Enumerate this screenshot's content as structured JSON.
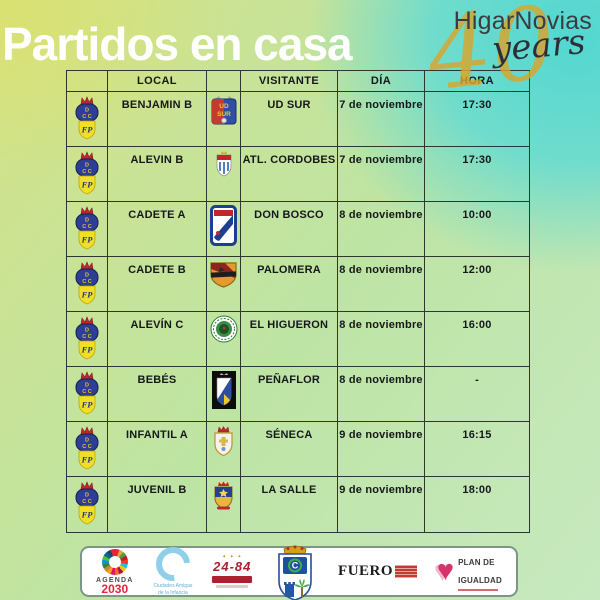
{
  "title": "Partidos en casa",
  "brand": {
    "name": "HigarNovias",
    "anniversary_number": "40",
    "anniversary_word": "years"
  },
  "colors": {
    "background_yellow": "#d5e180",
    "background_teal": "#5ed9d0",
    "title_text": "#ffffff",
    "brand_gold": "#d8a62e",
    "table_border": "#2f352f"
  },
  "table": {
    "headers": {
      "local": "LOCAL",
      "visitante": "VISITANTE",
      "dia": "DÍA",
      "hora": "HORA"
    },
    "rows": [
      {
        "local": "BENJAMIN B",
        "local_crest": "cdc-fp",
        "visitante": "UD SUR",
        "visitante_crest": "ud-sur",
        "dia": "7 de noviembre",
        "hora": "17:30"
      },
      {
        "local": "ALEVIN B",
        "local_crest": "cdc-fp",
        "visitante": "ATL. CORDOBES",
        "visitante_crest": "atl-cordobes",
        "dia": "7 de noviembre",
        "hora": "17:30"
      },
      {
        "local": "CADETE A",
        "local_crest": "cdc-fp",
        "visitante": "DON BOSCO",
        "visitante_crest": "don-bosco",
        "dia": "8 de noviembre",
        "hora": "10:00"
      },
      {
        "local": "CADETE B",
        "local_crest": "cdc-fp",
        "visitante": "PALOMERA",
        "visitante_crest": "palomera",
        "dia": "8 de noviembre",
        "hora": "12:00"
      },
      {
        "local": "ALEVÍN C",
        "local_crest": "cdc-fp",
        "visitante": "EL HIGUERON",
        "visitante_crest": "el-higueron",
        "dia": "8 de noviembre",
        "hora": "16:00"
      },
      {
        "local": "BEBÉS",
        "local_crest": "cdc-fp",
        "visitante": "PEÑAFLOR",
        "visitante_crest": "penaflor",
        "dia": "8 de noviembre",
        "hora": "-"
      },
      {
        "local": "INFANTIL A",
        "local_crest": "cdc-fp",
        "visitante": "SÉNECA",
        "visitante_crest": "seneca",
        "dia": "9 de noviembre",
        "hora": "16:15"
      },
      {
        "local": "JUVENIL B",
        "local_crest": "cdc-fp",
        "visitante": "LA SALLE",
        "visitante_crest": "la-salle",
        "dia": "9 de noviembre",
        "hora": "18:00"
      }
    ]
  },
  "sponsors": [
    {
      "id": "agenda-2030",
      "line1": "AGENDA",
      "line2": "2030"
    },
    {
      "id": "ciudades-amigas",
      "line1": "Ciudades Amigas",
      "line2": "de la Infancia"
    },
    {
      "id": "aniversario-24-84",
      "line1": "24-84"
    },
    {
      "id": "escudo-fuente-palmera",
      "line1": "C"
    },
    {
      "id": "fuero",
      "line1": "FUERO"
    },
    {
      "id": "plan-igualdad",
      "line1": "PLAN DE",
      "line2": "IGUALDAD"
    }
  ]
}
